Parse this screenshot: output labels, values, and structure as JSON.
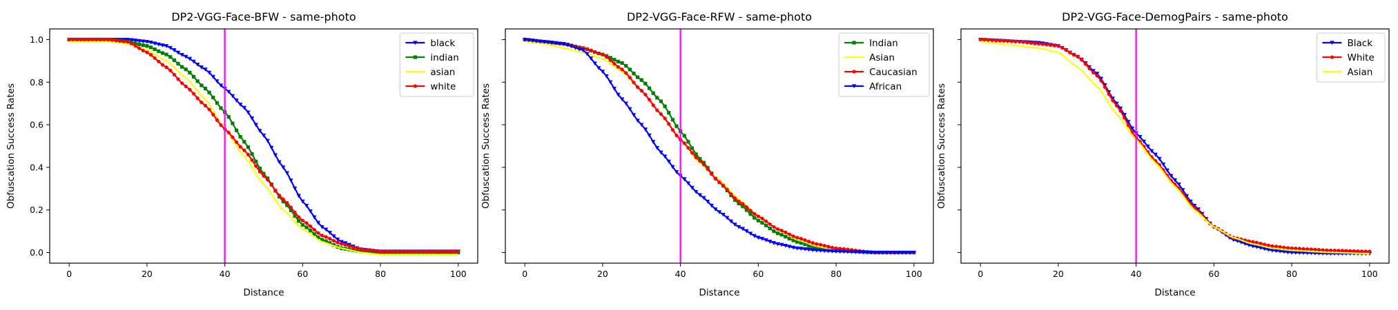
{
  "chart_data": [
    {
      "type": "line",
      "title": "DP2-VGG-Face-BFW - same-photo",
      "xlabel": "Distance",
      "ylabel": "Obfuscation Success Rates",
      "xlim": [
        -5,
        105
      ],
      "ylim": [
        -0.05,
        1.05
      ],
      "xticks": [
        0,
        20,
        40,
        60,
        80,
        100
      ],
      "yticks": [
        0.0,
        0.2,
        0.4,
        0.6,
        0.8,
        1.0
      ],
      "show_y_ticklabels": true,
      "vline": {
        "x": 40,
        "color": "#ff00ff"
      },
      "legend_position": "top-right",
      "series": [
        {
          "name": "black",
          "color": "#0000ff",
          "marker": "triangle-down",
          "x": [
            0,
            10,
            15,
            20,
            25,
            30,
            35,
            40,
            45,
            50,
            55,
            60,
            65,
            70,
            75,
            80,
            90,
            100
          ],
          "values": [
            1.0,
            1.0,
            1.0,
            0.99,
            0.97,
            0.92,
            0.86,
            0.77,
            0.68,
            0.55,
            0.4,
            0.24,
            0.12,
            0.05,
            0.015,
            0.005,
            0.005,
            0.005
          ]
        },
        {
          "name": "indian",
          "color": "#008000",
          "marker": "square",
          "x": [
            0,
            10,
            15,
            20,
            25,
            30,
            35,
            40,
            45,
            50,
            55,
            60,
            65,
            70,
            75,
            80,
            90,
            100
          ],
          "values": [
            1.0,
            1.0,
            0.99,
            0.97,
            0.93,
            0.86,
            0.77,
            0.66,
            0.52,
            0.37,
            0.24,
            0.13,
            0.06,
            0.02,
            0.005,
            0.0,
            0.0,
            0.0
          ]
        },
        {
          "name": "asian",
          "color": "#ffff00",
          "marker": "none",
          "x": [
            0,
            10,
            15,
            20,
            25,
            30,
            35,
            40,
            45,
            50,
            55,
            60,
            65,
            70,
            75,
            80,
            90,
            100
          ],
          "values": [
            0.99,
            0.99,
            0.98,
            0.95,
            0.9,
            0.82,
            0.72,
            0.58,
            0.45,
            0.32,
            0.2,
            0.11,
            0.05,
            0.02,
            0.0,
            -0.01,
            -0.01,
            -0.01
          ]
        },
        {
          "name": "white",
          "color": "#ff0000",
          "marker": "circle",
          "x": [
            0,
            10,
            15,
            20,
            25,
            30,
            35,
            40,
            45,
            50,
            55,
            60,
            65,
            70,
            75,
            80,
            90,
            100
          ],
          "values": [
            1.0,
            1.0,
            0.99,
            0.94,
            0.87,
            0.78,
            0.69,
            0.58,
            0.48,
            0.36,
            0.25,
            0.15,
            0.08,
            0.04,
            0.015,
            0.005,
            0.005,
            0.005
          ]
        }
      ]
    },
    {
      "type": "line",
      "title": "DP2-VGG-Face-RFW - same-photo",
      "xlabel": "Distance",
      "ylabel": "Obfuscation Success Rates",
      "xlim": [
        -5,
        105
      ],
      "ylim": [
        -0.05,
        1.05
      ],
      "xticks": [
        0,
        20,
        40,
        60,
        80,
        100
      ],
      "yticks": [
        0.0,
        0.2,
        0.4,
        0.6,
        0.8,
        1.0
      ],
      "show_y_ticklabels": false,
      "vline": {
        "x": 40,
        "color": "#ff00ff"
      },
      "legend_position": "top-right",
      "series": [
        {
          "name": "Indian",
          "color": "#008000",
          "marker": "square",
          "x": [
            0,
            5,
            10,
            15,
            20,
            25,
            30,
            35,
            40,
            45,
            50,
            55,
            60,
            65,
            70,
            75,
            80,
            90,
            100
          ],
          "values": [
            1.0,
            0.99,
            0.98,
            0.96,
            0.93,
            0.89,
            0.81,
            0.71,
            0.57,
            0.44,
            0.33,
            0.23,
            0.15,
            0.09,
            0.05,
            0.02,
            0.01,
            0.0,
            0.0
          ]
        },
        {
          "name": "Asian",
          "color": "#ffff00",
          "marker": "none",
          "x": [
            0,
            5,
            10,
            15,
            20,
            25,
            30,
            35,
            40,
            45,
            50,
            55,
            60,
            65,
            70,
            75,
            80,
            90,
            100
          ],
          "values": [
            0.99,
            0.98,
            0.96,
            0.94,
            0.91,
            0.85,
            0.76,
            0.65,
            0.53,
            0.42,
            0.34,
            0.25,
            0.17,
            0.11,
            0.06,
            0.03,
            0.01,
            0.0,
            0.0
          ]
        },
        {
          "name": "Caucasian",
          "color": "#ff0000",
          "marker": "circle",
          "x": [
            0,
            5,
            10,
            15,
            20,
            25,
            30,
            35,
            40,
            45,
            50,
            55,
            60,
            65,
            70,
            75,
            80,
            90,
            100
          ],
          "values": [
            1.0,
            0.99,
            0.98,
            0.96,
            0.93,
            0.86,
            0.76,
            0.65,
            0.53,
            0.43,
            0.33,
            0.24,
            0.17,
            0.11,
            0.07,
            0.04,
            0.02,
            0.0,
            0.0
          ]
        },
        {
          "name": "African",
          "color": "#0000ff",
          "marker": "triangle-down",
          "x": [
            0,
            5,
            10,
            15,
            20,
            25,
            30,
            35,
            40,
            45,
            50,
            55,
            60,
            65,
            70,
            75,
            80,
            90,
            100
          ],
          "values": [
            1.0,
            0.99,
            0.98,
            0.95,
            0.85,
            0.72,
            0.6,
            0.47,
            0.36,
            0.27,
            0.19,
            0.12,
            0.07,
            0.04,
            0.02,
            0.01,
            0.005,
            0.0,
            0.0
          ]
        }
      ]
    },
    {
      "type": "line",
      "title": "DP2-VGG-Face-DemogPairs - same-photo",
      "xlabel": "Distance",
      "ylabel": "Obfuscation Success Rates",
      "xlim": [
        -5,
        105
      ],
      "ylim": [
        -0.05,
        1.05
      ],
      "xticks": [
        0,
        20,
        40,
        60,
        80,
        100
      ],
      "yticks": [
        0.0,
        0.2,
        0.4,
        0.6,
        0.8,
        1.0
      ],
      "show_y_ticklabels": false,
      "vline": {
        "x": 40,
        "color": "#ff00ff"
      },
      "legend_position": "top-right",
      "series": [
        {
          "name": "Black",
          "color": "#0000ff",
          "marker": "triangle-down",
          "x": [
            0,
            5,
            10,
            15,
            20,
            25,
            30,
            35,
            40,
            45,
            50,
            55,
            60,
            65,
            70,
            75,
            80,
            90,
            100
          ],
          "values": [
            1.0,
            0.995,
            0.99,
            0.985,
            0.97,
            0.92,
            0.84,
            0.7,
            0.56,
            0.46,
            0.34,
            0.22,
            0.12,
            0.06,
            0.03,
            0.01,
            0.0,
            -0.005,
            -0.005
          ]
        },
        {
          "name": "White",
          "color": "#ff0000",
          "marker": "circle",
          "x": [
            0,
            5,
            10,
            15,
            20,
            25,
            30,
            35,
            40,
            45,
            50,
            55,
            60,
            65,
            70,
            75,
            80,
            90,
            100
          ],
          "values": [
            1.0,
            0.995,
            0.99,
            0.98,
            0.97,
            0.92,
            0.83,
            0.69,
            0.54,
            0.43,
            0.32,
            0.21,
            0.12,
            0.07,
            0.05,
            0.03,
            0.02,
            0.01,
            0.005
          ]
        },
        {
          "name": "Asian",
          "color": "#ffff00",
          "marker": "none",
          "x": [
            0,
            5,
            10,
            15,
            20,
            25,
            30,
            35,
            40,
            45,
            50,
            55,
            60,
            65,
            70,
            75,
            80,
            90,
            100
          ],
          "values": [
            0.99,
            0.98,
            0.97,
            0.96,
            0.94,
            0.87,
            0.78,
            0.65,
            0.53,
            0.42,
            0.31,
            0.2,
            0.12,
            0.07,
            0.04,
            0.02,
            0.01,
            0.0,
            -0.005
          ]
        }
      ]
    }
  ]
}
